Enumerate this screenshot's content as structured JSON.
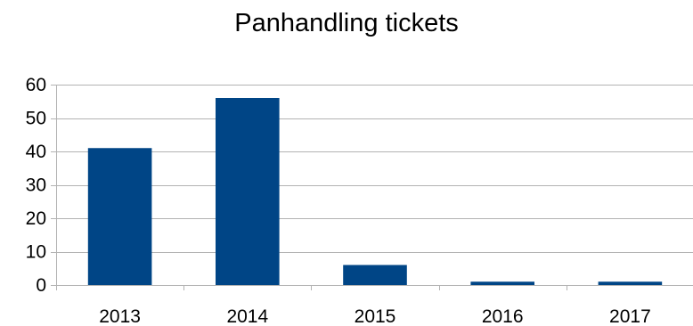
{
  "chart_data": {
    "type": "bar",
    "title": "Panhandling tickets",
    "xlabel": "",
    "ylabel": "",
    "categories": [
      "2013",
      "2014",
      "2015",
      "2016",
      "2017"
    ],
    "values": [
      41,
      56,
      6,
      1,
      1
    ],
    "ylim": [
      0,
      60
    ],
    "yticks": [
      0,
      10,
      20,
      30,
      40,
      50,
      60
    ],
    "grid": true,
    "legend": "none",
    "colors": {
      "bar": "#004586",
      "grid": "#b3b3b3",
      "axis": "#b3b3b3"
    }
  }
}
